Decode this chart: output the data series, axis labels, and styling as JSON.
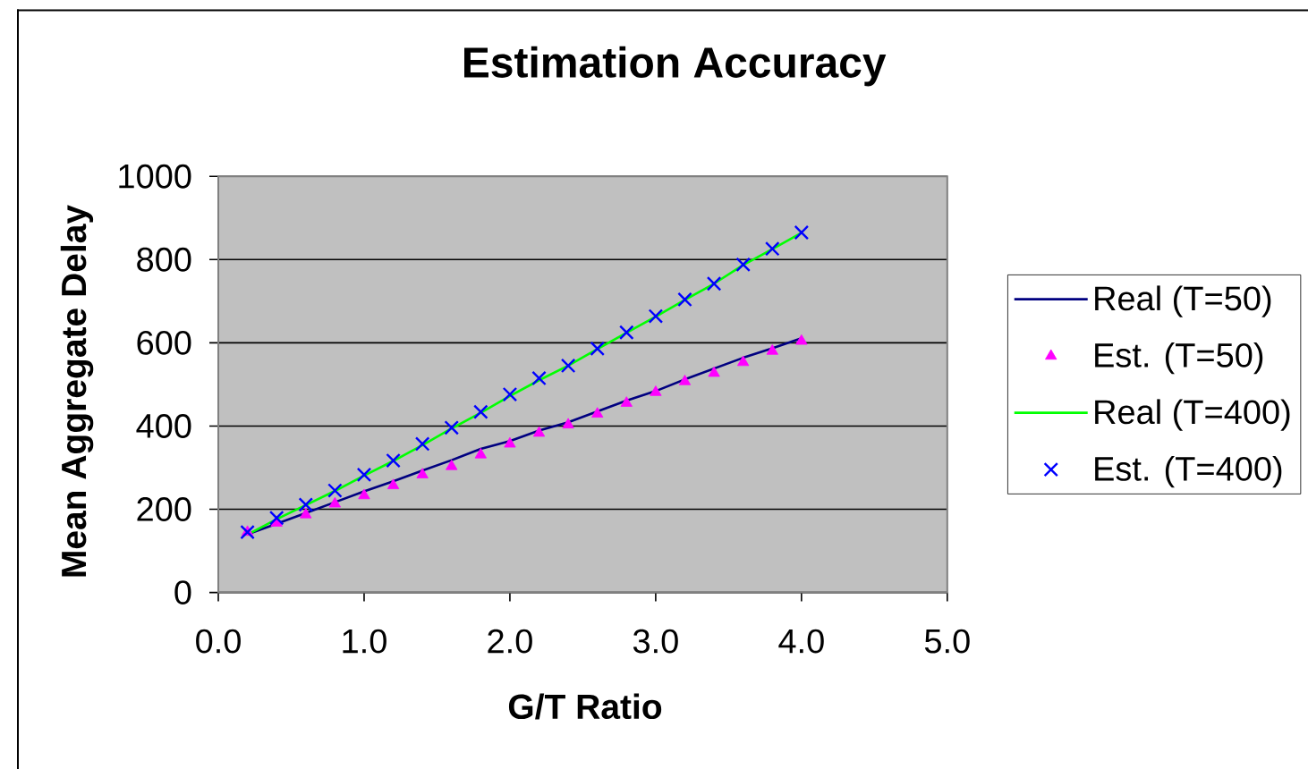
{
  "chart_data": {
    "type": "line",
    "title": "Estimation Accuracy",
    "xlabel": "G/T Ratio",
    "ylabel": "Mean Aggregate Delay",
    "x": [
      0.2,
      0.4,
      0.6,
      0.8,
      1.0,
      1.2,
      1.4,
      1.6,
      1.8,
      2.0,
      2.2,
      2.4,
      2.6,
      2.8,
      3.0,
      3.2,
      3.4,
      3.6,
      3.8,
      4.0
    ],
    "series": [
      {
        "name": "Real (T=50)",
        "type": "line",
        "color": "#000080",
        "values": [
          140,
          165,
          191,
          217,
          243,
          267,
          293,
          318,
          345,
          364,
          389,
          409,
          435,
          461,
          484,
          512,
          538,
          564,
          587,
          611
        ]
      },
      {
        "name": "Est. (T=50)",
        "type": "scatter",
        "marker": "triangle",
        "color": "#ff00ff",
        "values": [
          145,
          167,
          187,
          213,
          233,
          257,
          283,
          303,
          331,
          357,
          383,
          403,
          429,
          455,
          481,
          507,
          527,
          553,
          580,
          604
        ]
      },
      {
        "name": "Real (T=400)",
        "type": "line",
        "color": "#00ff00",
        "values": [
          139,
          176,
          210,
          244,
          281,
          316,
          354,
          394,
          432,
          472,
          510,
          545,
          585,
          624,
          663,
          703,
          742,
          787,
          825,
          864
        ]
      },
      {
        "name": "Est. (T=400)",
        "type": "scatter",
        "marker": "cross",
        "color": "#0000ff",
        "values": [
          145,
          179,
          211,
          245,
          283,
          317,
          357,
          396,
          434,
          476,
          515,
          545,
          586,
          625,
          664,
          704,
          742,
          788,
          826,
          865
        ]
      }
    ],
    "xlim": [
      0,
      5
    ],
    "ylim": [
      0,
      1000
    ],
    "xticks": [
      {
        "value": 0,
        "label": "0.0"
      },
      {
        "value": 1,
        "label": "1.0"
      },
      {
        "value": 2,
        "label": "2.0"
      },
      {
        "value": 3,
        "label": "3.0"
      },
      {
        "value": 4,
        "label": "4.0"
      },
      {
        "value": 5,
        "label": "5.0"
      }
    ],
    "yticks": [
      0,
      200,
      400,
      600,
      800,
      1000
    ],
    "grid": "y",
    "legend": "right"
  }
}
